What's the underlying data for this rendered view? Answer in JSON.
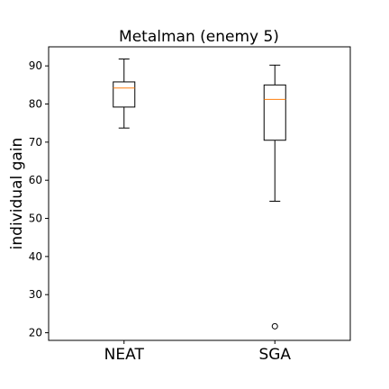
{
  "chart_data": {
    "type": "box",
    "title": "Metalman (enemy 5)",
    "xlabel": "",
    "ylabel": "individual gain",
    "categories": [
      "NEAT",
      "SGA"
    ],
    "ylim": [
      18,
      95
    ],
    "yticks": [
      20,
      30,
      40,
      50,
      60,
      70,
      80,
      90
    ],
    "grid": false,
    "boxes": [
      {
        "label": "NEAT",
        "whisker_low": 73.7,
        "q1": 79.2,
        "median": 84.2,
        "q3": 85.8,
        "whisker_high": 91.8,
        "outliers": []
      },
      {
        "label": "SGA",
        "whisker_low": 54.5,
        "q1": 70.5,
        "median": 81.2,
        "q3": 85.0,
        "whisker_high": 90.2,
        "outliers": [
          21.7
        ]
      }
    ],
    "colors": {
      "box": "#000000",
      "median": "#ff7f0e",
      "outlier": "#000000"
    }
  }
}
